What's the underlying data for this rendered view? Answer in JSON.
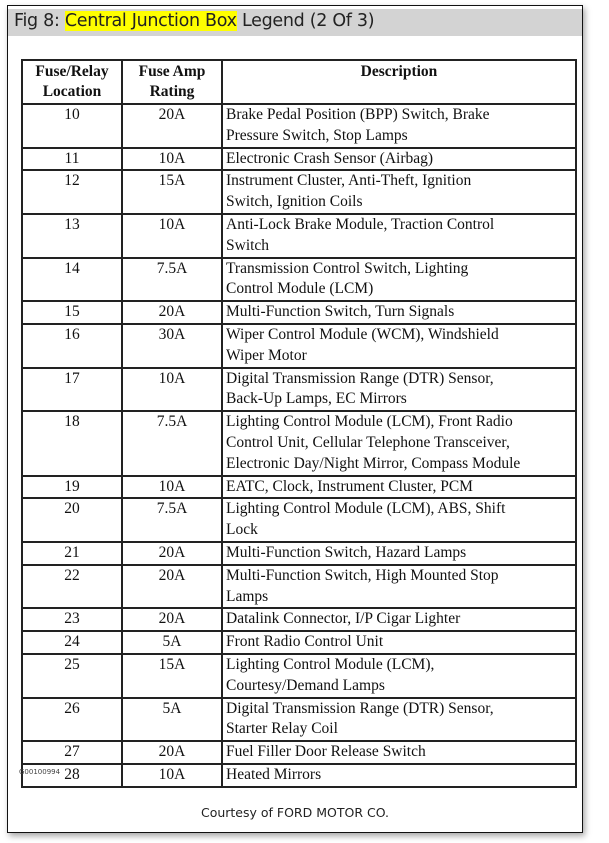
{
  "title": {
    "prefix": "Fig 8: ",
    "highlight": "Central Junction Box",
    "suffix": " Legend (2 Of 3)",
    "highlight_color": "#ffff00"
  },
  "table": {
    "headers": [
      [
        "Fuse/Relay",
        "Location"
      ],
      [
        "Fuse Amp",
        "Rating"
      ],
      [
        "Description"
      ]
    ],
    "rows": [
      {
        "loc": "10",
        "amp": "20A",
        "desc": [
          "Brake Pedal Position (BPP) Switch, Brake",
          "Pressure Switch, Stop Lamps"
        ]
      },
      {
        "loc": "11",
        "amp": "10A",
        "desc": [
          "Electronic Crash Sensor (Airbag)"
        ]
      },
      {
        "loc": "12",
        "amp": "15A",
        "desc": [
          "Instrument Cluster, Anti-Theft, Ignition",
          "Switch, Ignition Coils"
        ]
      },
      {
        "loc": "13",
        "amp": "10A",
        "desc": [
          "Anti-Lock Brake Module, Traction Control",
          "Switch"
        ]
      },
      {
        "loc": "14",
        "amp": "7.5A",
        "desc": [
          "Transmission Control Switch, Lighting",
          "Control Module (LCM)"
        ]
      },
      {
        "loc": "15",
        "amp": "20A",
        "desc": [
          "Multi-Function Switch, Turn Signals"
        ]
      },
      {
        "loc": "16",
        "amp": "30A",
        "desc": [
          "Wiper Control Module (WCM), Windshield",
          "Wiper Motor"
        ]
      },
      {
        "loc": "17",
        "amp": "10A",
        "desc": [
          "Digital Transmission Range (DTR) Sensor,",
          "Back-Up Lamps, EC Mirrors"
        ]
      },
      {
        "loc": "18",
        "amp": "7.5A",
        "desc": [
          "Lighting Control Module (LCM), Front Radio",
          "Control Unit, Cellular Telephone Transceiver,",
          "Electronic Day/Night Mirror, Compass Module"
        ]
      },
      {
        "loc": "19",
        "amp": "10A",
        "desc": [
          "EATC, Clock, Instrument Cluster, PCM"
        ]
      },
      {
        "loc": "20",
        "amp": "7.5A",
        "desc": [
          "Lighting Control Module (LCM), ABS, Shift",
          "Lock"
        ]
      },
      {
        "loc": "21",
        "amp": "20A",
        "desc": [
          "Multi-Function Switch, Hazard Lamps"
        ]
      },
      {
        "loc": "22",
        "amp": "20A",
        "desc": [
          "Multi-Function Switch, High Mounted Stop",
          "Lamps"
        ]
      },
      {
        "loc": "23",
        "amp": "20A",
        "desc": [
          "Datalink Connector, I/P Cigar Lighter"
        ]
      },
      {
        "loc": "24",
        "amp": "5A",
        "desc": [
          "Front Radio Control Unit"
        ]
      },
      {
        "loc": "25",
        "amp": "15A",
        "desc": [
          "Lighting Control Module (LCM),",
          "Courtesy/Demand Lamps"
        ]
      },
      {
        "loc": "26",
        "amp": "5A",
        "desc": [
          "Digital Transmission Range (DTR) Sensor,",
          "Starter Relay Coil"
        ]
      },
      {
        "loc": "27",
        "amp": "20A",
        "desc": [
          "Fuel Filler Door Release Switch"
        ]
      },
      {
        "loc": "28",
        "amp": "10A",
        "desc": [
          "Heated Mirrors"
        ]
      }
    ]
  },
  "figure_code": "G00100994",
  "courtesy": "Courtesy of FORD MOTOR CO."
}
